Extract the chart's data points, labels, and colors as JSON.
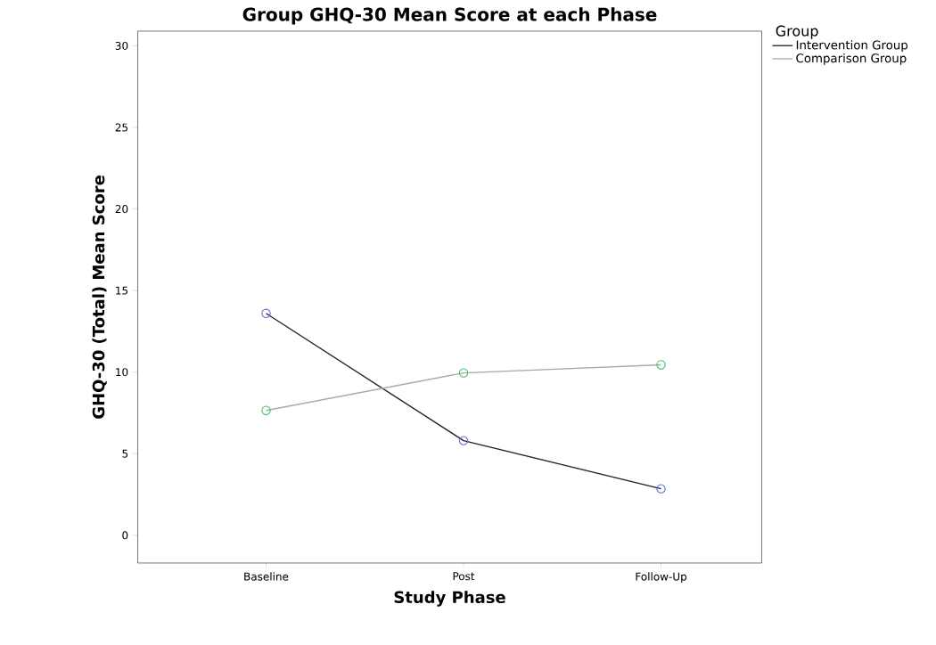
{
  "chart_data": {
    "type": "line",
    "title": "Group GHQ-30 Mean Score at each Phase",
    "xlabel": "Study Phase",
    "ylabel": "GHQ-30 (Total) Mean Score",
    "legend_title": "Group",
    "categories": [
      "Baseline",
      "Post",
      "Follow-Up"
    ],
    "series": [
      {
        "name": "Intervention Group",
        "color": "#222222",
        "colors": [
          "#5a6ad0",
          "#5a6ad0",
          "#5a6ad0"
        ],
        "values": [
          13.6,
          5.8,
          2.85
        ]
      },
      {
        "name": "Comparison Group",
        "color": "#aaaaaa",
        "colors": [
          "#3cc060",
          "#3cc060",
          "#3cc060"
        ],
        "values": [
          7.65,
          9.95,
          10.45
        ]
      }
    ],
    "ylim": [
      -1.7,
      30.9
    ],
    "yticks": [
      0,
      5,
      10,
      15,
      20,
      25,
      30
    ],
    "grid": false,
    "legend": "top right",
    "marker": "circle",
    "line_style": "solid"
  }
}
